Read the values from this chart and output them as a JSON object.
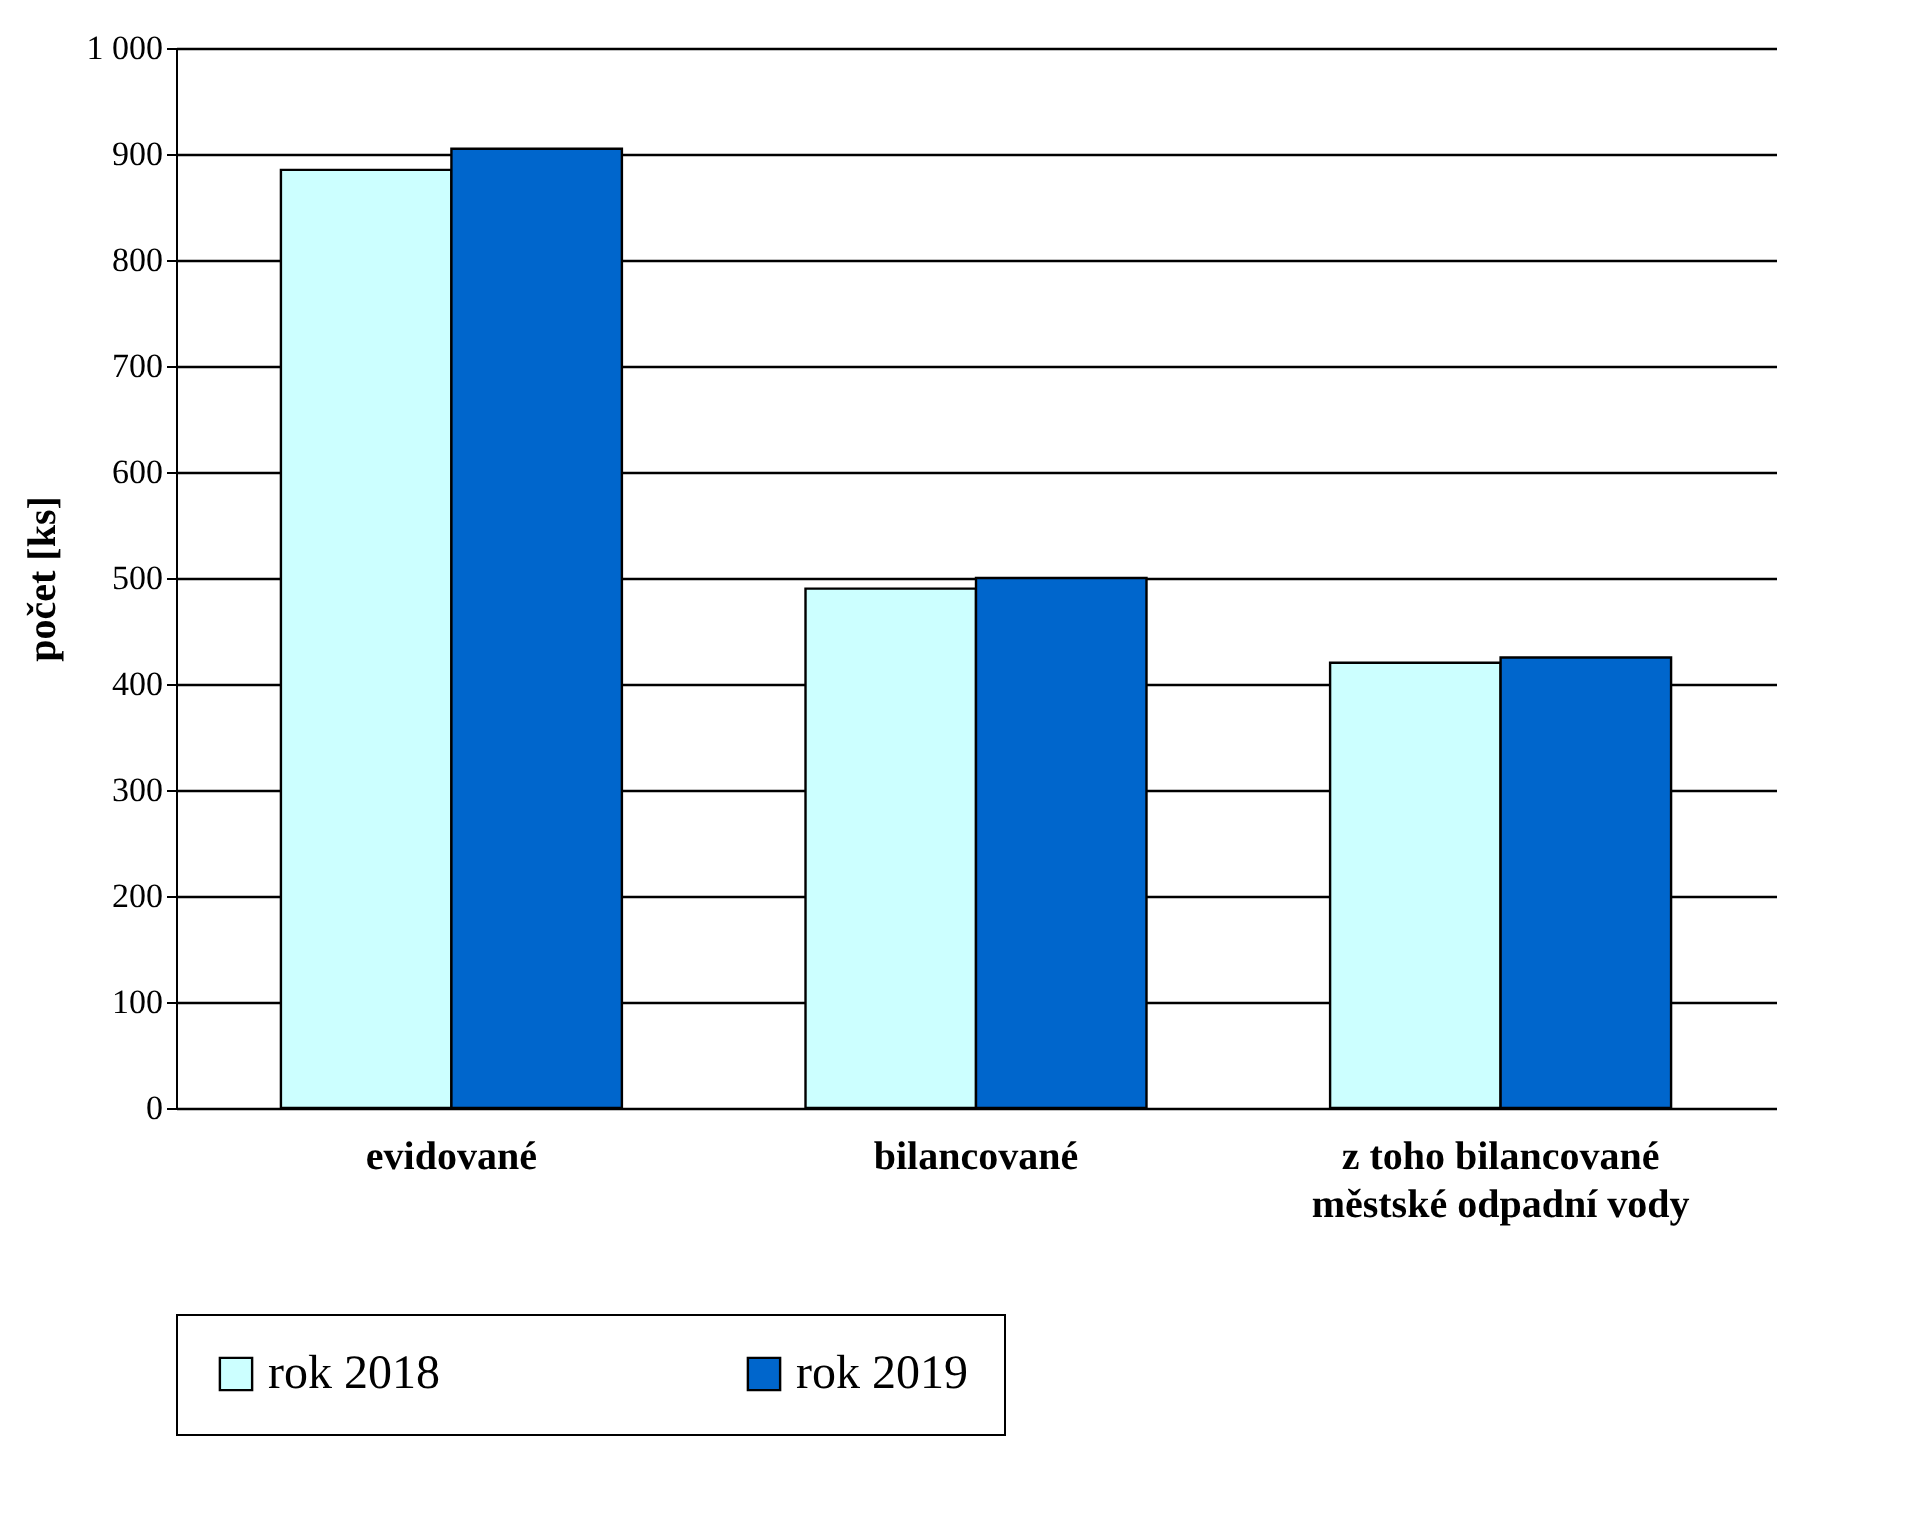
{
  "chart_data": {
    "type": "bar",
    "ylabel": "počet [ks]",
    "categories": [
      "evidované",
      "bilancované",
      "z toho bilancované městské odpadní vody"
    ],
    "series": [
      {
        "name": "rok 2018",
        "color": "#ccffff",
        "values": [
          885,
          490,
          420
        ]
      },
      {
        "name": "rok 2019",
        "color": "#0066cc",
        "values": [
          905,
          500,
          425
        ]
      }
    ],
    "ylim": [
      0,
      1000
    ],
    "yticks": [
      0,
      100,
      200,
      300,
      400,
      500,
      600,
      700,
      800,
      900,
      {
        "value": 1000,
        "label": "1 000"
      }
    ],
    "grid": "y",
    "legend": "bottom"
  }
}
